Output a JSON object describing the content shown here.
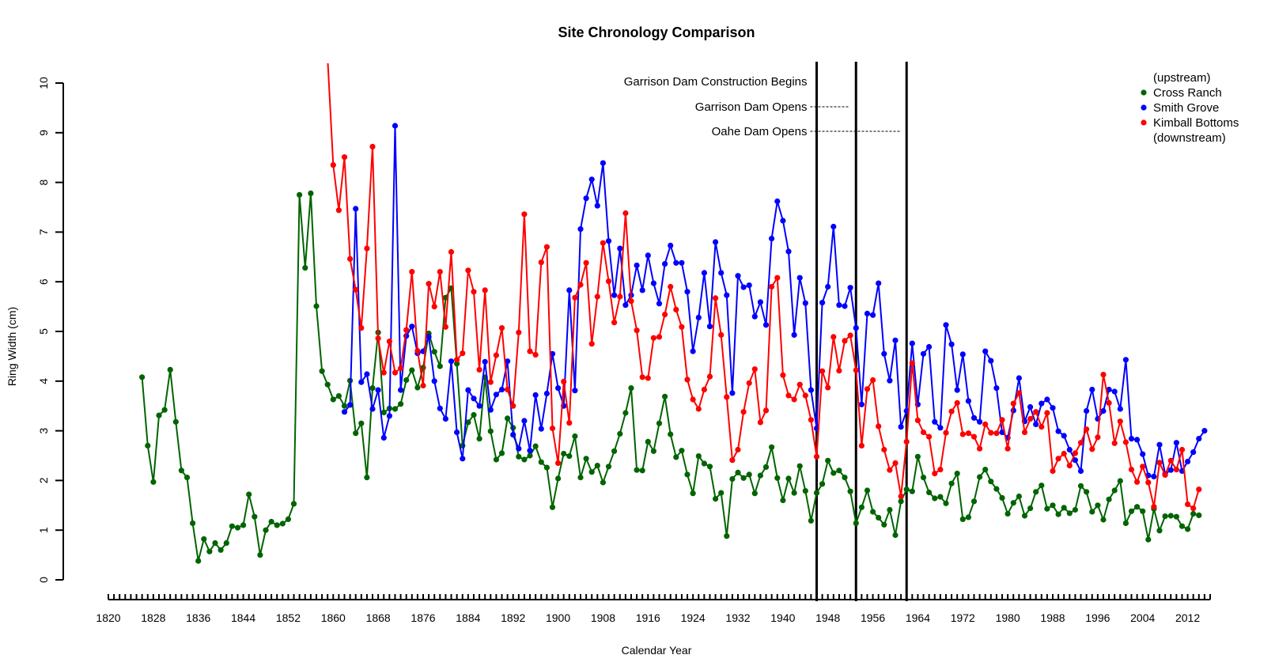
{
  "chart_data": {
    "type": "line",
    "title": "Site Chronology Comparison",
    "xlabel": "Calendar Year",
    "ylabel": "Ring Width (cm)",
    "xlim": [
      1820,
      2016
    ],
    "ylim": [
      0,
      10
    ],
    "x_ticks": [
      1820,
      1828,
      1836,
      1844,
      1852,
      1860,
      1868,
      1876,
      1884,
      1892,
      1900,
      1908,
      1916,
      1924,
      1932,
      1940,
      1948,
      1956,
      1964,
      1972,
      1980,
      1988,
      1996,
      2004,
      2012
    ],
    "y_ticks": [
      0,
      1,
      2,
      3,
      4,
      5,
      6,
      7,
      8,
      9,
      10
    ],
    "grid": false,
    "legend_position": "top-right",
    "legend": {
      "header": "(upstream)",
      "footer": "(downstream)",
      "entries": [
        "Cross Ranch",
        "Smith Grove",
        "Kimball Bottoms"
      ]
    },
    "vlines": [
      {
        "x": 1946,
        "label": "Garrison Dam Construction Begins"
      },
      {
        "x": 1953,
        "label": "Garrison Dam Opens"
      },
      {
        "x": 1962,
        "label": "Oahe Dam Opens"
      }
    ],
    "series": [
      {
        "name": "Cross Ranch",
        "color": "#006400",
        "start": 1826,
        "values": [
          4.08,
          2.7,
          1.97,
          3.31,
          3.42,
          4.23,
          3.18,
          2.2,
          2.06,
          1.14,
          0.38,
          0.82,
          0.57,
          0.74,
          0.6,
          0.74,
          1.08,
          1.05,
          1.1,
          1.72,
          1.27,
          0.5,
          1.0,
          1.17,
          1.1,
          1.13,
          1.22,
          1.53,
          7.75,
          6.28,
          7.78,
          5.51,
          4.2,
          3.93,
          3.63,
          3.7,
          3.5,
          4.01,
          2.95,
          3.15,
          2.06,
          3.86,
          4.98,
          3.37,
          3.45,
          3.44,
          3.54,
          4.02,
          4.22,
          3.87,
          4.27,
          4.96,
          4.59,
          4.3,
          5.68,
          5.87,
          4.35,
          2.7,
          3.17,
          3.32,
          2.84,
          4.08,
          2.99,
          2.42,
          2.55,
          3.25,
          3.06,
          2.48,
          2.42,
          2.5,
          2.69,
          2.37,
          2.26,
          1.46,
          2.04,
          2.54,
          2.49,
          2.89,
          2.06,
          2.44,
          2.17,
          2.3,
          1.96,
          2.28,
          2.59,
          2.94,
          3.36,
          3.86,
          2.21,
          2.2,
          2.78,
          2.59,
          3.15,
          3.69,
          2.93,
          2.47,
          2.6,
          2.12,
          1.74,
          2.49,
          2.34,
          2.28,
          1.63,
          1.75,
          0.88,
          2.03,
          2.16,
          2.05,
          2.12,
          1.74,
          2.1,
          2.27,
          2.67,
          2.05,
          1.6,
          2.04,
          1.75,
          2.29,
          1.79,
          1.19,
          1.75,
          1.93,
          2.4,
          2.15,
          2.2,
          2.06,
          1.78,
          1.14,
          1.46,
          1.8,
          1.37,
          1.25,
          1.11,
          1.41,
          0.9,
          1.58,
          1.82,
          1.78,
          2.48,
          2.06,
          1.76,
          1.64,
          1.67,
          1.54,
          1.94,
          2.14,
          1.22,
          1.26,
          1.58,
          2.07,
          2.22,
          1.98,
          1.83,
          1.65,
          1.33,
          1.55,
          1.68,
          1.29,
          1.44,
          1.77,
          1.9,
          1.43,
          1.5,
          1.32,
          1.45,
          1.34,
          1.41,
          1.89,
          1.77,
          1.37,
          1.5,
          1.21,
          1.62,
          1.8,
          1.99,
          1.14,
          1.38,
          1.47,
          1.38,
          0.81,
          1.43,
          0.99,
          1.28,
          1.29,
          1.27,
          1.08,
          1.02,
          1.33,
          1.3
        ]
      },
      {
        "name": "Smith Grove",
        "color": "#0000ff",
        "start": 1862,
        "values": [
          3.38,
          3.52,
          7.47,
          3.98,
          4.14,
          3.44,
          3.82,
          2.86,
          3.3,
          9.14,
          3.82,
          4.91,
          5.1,
          4.56,
          4.6,
          4.89,
          4.0,
          3.45,
          3.24,
          4.4,
          2.97,
          2.44,
          3.82,
          3.65,
          3.5,
          4.39,
          3.42,
          3.73,
          3.83,
          4.4,
          2.92,
          2.64,
          3.2,
          2.6,
          3.72,
          3.04,
          3.75,
          4.55,
          3.86,
          3.5,
          5.83,
          3.81,
          7.06,
          7.68,
          8.06,
          7.53,
          8.39,
          6.82,
          5.73,
          6.67,
          5.53,
          5.73,
          6.33,
          5.83,
          6.53,
          5.97,
          5.56,
          6.36,
          6.73,
          6.38,
          6.38,
          5.8,
          4.6,
          5.28,
          6.18,
          5.1,
          6.8,
          6.18,
          5.73,
          3.76,
          6.12,
          5.89,
          5.93,
          5.3,
          5.59,
          5.13,
          6.87,
          7.62,
          7.23,
          6.61,
          4.93,
          6.08,
          5.57,
          3.82,
          3.05,
          5.58,
          5.9,
          7.11,
          5.53,
          5.51,
          5.88,
          5.07,
          3.53,
          5.36,
          5.33,
          5.97,
          4.55,
          4.01,
          4.82,
          3.08,
          3.4,
          4.76,
          3.53,
          4.55,
          4.69,
          3.18,
          3.06,
          5.13,
          4.74,
          3.82,
          4.54,
          3.6,
          3.26,
          3.18,
          4.6,
          4.41,
          3.86,
          2.97,
          2.86,
          3.41,
          4.06,
          3.19,
          3.48,
          3.13,
          3.55,
          3.63,
          3.46,
          2.99,
          2.9,
          2.62,
          2.41,
          2.19,
          3.4,
          3.83,
          3.24,
          3.4,
          3.83,
          3.79,
          3.44,
          4.43,
          2.84,
          2.82,
          2.53,
          2.1,
          2.08,
          2.72,
          2.13,
          2.21,
          2.76,
          2.19,
          2.38,
          2.57,
          2.84,
          3.0
        ]
      },
      {
        "name": "Kimball Bottoms",
        "color": "#ff0000",
        "start": 1859,
        "values": [
          10.5,
          8.35,
          7.44,
          8.51,
          6.46,
          5.84,
          5.07,
          6.67,
          8.72,
          4.86,
          4.17,
          4.8,
          4.17,
          4.26,
          5.03,
          6.2,
          4.61,
          3.91,
          5.96,
          5.5,
          6.2,
          5.09,
          6.6,
          4.43,
          4.56,
          6.23,
          5.8,
          4.23,
          5.83,
          3.98,
          4.52,
          5.07,
          3.83,
          3.5,
          4.98,
          7.36,
          4.6,
          4.53,
          6.39,
          6.7,
          3.05,
          2.35,
          3.99,
          3.16,
          5.68,
          5.94,
          6.38,
          4.75,
          5.7,
          6.78,
          6.01,
          5.18,
          5.7,
          7.38,
          5.61,
          5.02,
          4.08,
          4.06,
          4.87,
          4.89,
          5.34,
          5.9,
          5.44,
          5.09,
          4.03,
          3.63,
          3.44,
          3.83,
          4.09,
          5.67,
          4.93,
          3.68,
          2.41,
          2.62,
          3.38,
          3.96,
          4.24,
          3.17,
          3.41,
          5.9,
          6.08,
          4.12,
          3.71,
          3.63,
          3.93,
          3.71,
          3.22,
          2.48,
          4.2,
          3.87,
          4.89,
          4.21,
          4.81,
          4.92,
          4.22,
          2.7,
          3.84,
          4.02,
          3.09,
          2.62,
          2.21,
          2.35,
          1.68,
          2.78,
          4.36,
          3.21,
          2.97,
          2.88,
          2.14,
          2.22,
          2.96,
          3.39,
          3.56,
          2.93,
          2.95,
          2.88,
          2.64,
          3.13,
          2.96,
          2.95,
          3.22,
          2.64,
          3.55,
          3.76,
          2.97,
          3.24,
          3.38,
          3.08,
          3.36,
          2.19,
          2.44,
          2.54,
          2.3,
          2.55,
          2.76,
          3.03,
          2.63,
          2.87,
          4.13,
          3.56,
          2.75,
          3.19,
          2.77,
          2.22,
          1.97,
          2.28,
          1.96,
          1.47,
          2.36,
          2.11,
          2.4,
          2.22,
          2.62,
          1.52,
          1.44,
          1.82
        ]
      }
    ]
  }
}
